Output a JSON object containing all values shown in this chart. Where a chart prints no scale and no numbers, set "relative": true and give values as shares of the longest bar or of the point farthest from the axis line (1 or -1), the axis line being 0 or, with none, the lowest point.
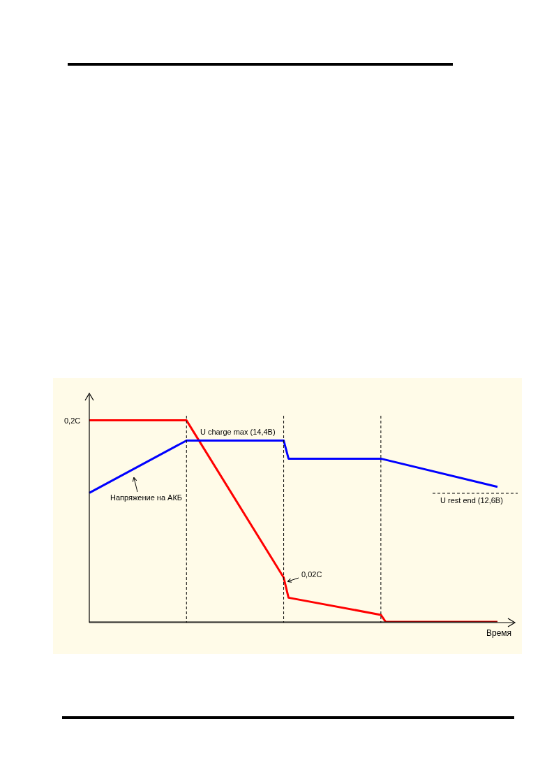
{
  "chart_data": {
    "type": "line",
    "relative": true,
    "xlabel": "Время",
    "marker": "none",
    "grid": "x",
    "line_style": "solid",
    "categories": [
      null,
      null,
      null,
      null,
      null,
      null,
      null,
      null,
      null,
      null,
      null,
      null,
      null,
      null,
      null,
      null,
      null,
      null,
      null,
      null,
      null,
      null,
      null,
      null,
      null,
      null,
      null,
      null,
      null,
      null,
      null,
      null,
      null,
      null,
      null,
      null,
      null,
      null,
      null,
      null,
      null,
      null,
      null,
      null,
      null,
      null,
      null,
      null,
      null,
      null,
      null,
      null,
      null,
      null,
      null,
      null,
      null,
      null,
      null,
      null,
      null,
      null,
      null,
      null,
      null,
      null,
      null,
      null,
      null,
      null,
      null,
      null,
      null,
      null,
      null,
      null,
      null,
      null,
      null,
      null,
      null,
      null,
      null,
      null,
      null
    ],
    "series": [
      {
        "color": "#ff0000",
        "values": [
          1,
          null,
          null,
          null,
          null,
          null,
          null,
          null,
          null,
          null,
          null,
          null,
          null,
          null,
          null,
          null,
          null,
          null,
          null,
          null,
          1,
          null,
          null,
          null,
          null,
          null,
          null,
          null,
          null,
          null,
          null,
          null,
          null,
          null,
          null,
          null,
          null,
          null,
          null,
          null,
          0.22,
          0.12,
          null,
          null,
          null,
          null,
          null,
          null,
          null,
          null,
          null,
          null,
          null,
          null,
          null,
          null,
          null,
          null,
          null,
          null,
          0.035,
          0,
          null,
          null,
          null,
          null,
          null,
          null,
          null,
          null,
          null,
          null,
          null,
          null,
          null,
          null,
          null,
          null,
          null,
          null,
          null,
          null,
          null,
          null,
          0
        ]
      },
      {
        "color": "#0000ff",
        "values": [
          0.64,
          null,
          null,
          null,
          null,
          null,
          null,
          null,
          null,
          null,
          null,
          null,
          null,
          null,
          null,
          null,
          null,
          null,
          null,
          null,
          0.9,
          null,
          null,
          null,
          null,
          null,
          null,
          null,
          null,
          null,
          null,
          null,
          null,
          null,
          null,
          null,
          null,
          null,
          null,
          null,
          0.9,
          0.81,
          null,
          null,
          null,
          null,
          null,
          null,
          null,
          null,
          null,
          null,
          null,
          null,
          null,
          null,
          null,
          null,
          null,
          null,
          0.81,
          null,
          null,
          null,
          null,
          null,
          null,
          null,
          null,
          null,
          null,
          null,
          null,
          null,
          null,
          null,
          null,
          null,
          null,
          null,
          null,
          null,
          null,
          null,
          0.67
        ]
      }
    ],
    "annotations": [
      "0,2C",
      "U charge max (14,4В)",
      "Напряжение на АКБ",
      "0,02C",
      "U rest end (12,6В)"
    ]
  }
}
